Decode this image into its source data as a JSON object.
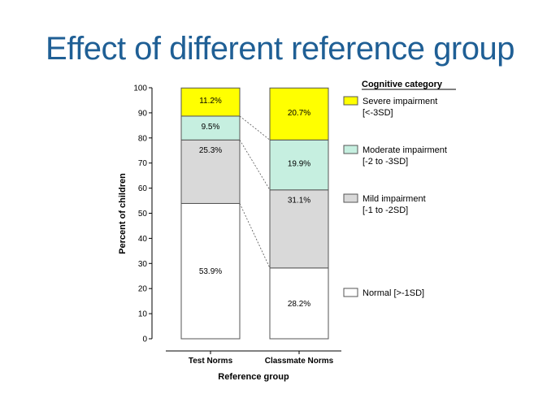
{
  "slide": {
    "title": "Effect of different reference group"
  },
  "chart_data": {
    "type": "bar",
    "stacked": true,
    "categories": [
      "Test Norms",
      "Classmate Norms"
    ],
    "xlabel": "Reference group",
    "ylabel": "Percent of children",
    "ylim": [
      0,
      100
    ],
    "yticks": [
      0,
      10,
      20,
      30,
      40,
      50,
      60,
      70,
      80,
      90,
      100
    ],
    "grid": false,
    "legend_placement": "right",
    "legend_title": "Cognitive category",
    "series": [
      {
        "name": "Normal [>-1SD]",
        "legend_lines": [
          "Normal [>-1SD]"
        ],
        "color": "#ffffff",
        "values": [
          53.9,
          28.2
        ],
        "labels": [
          "53.9%",
          "28.2%"
        ]
      },
      {
        "name": "Mild impairment [-1 to -2SD]",
        "legend_lines": [
          "Mild impairment",
          "[-1 to -2SD]"
        ],
        "color": "#d9d9d9",
        "values": [
          25.3,
          31.1
        ],
        "labels": [
          "25.3%",
          "31.1%"
        ]
      },
      {
        "name": "Moderate impairment [-2 to -3SD]",
        "legend_lines": [
          "Moderate impairment",
          "[-2 to -3SD]"
        ],
        "color": "#c6efe0",
        "values": [
          9.5,
          19.9
        ],
        "labels": [
          "9.5%",
          "19.9%"
        ]
      },
      {
        "name": "Severe impairment [<-3SD]",
        "legend_lines": [
          "Severe impairment",
          "[<-3SD]"
        ],
        "color": "#ffff00",
        "values": [
          11.2,
          20.7
        ],
        "labels": [
          "11.2%",
          "20.7%"
        ]
      }
    ]
  }
}
